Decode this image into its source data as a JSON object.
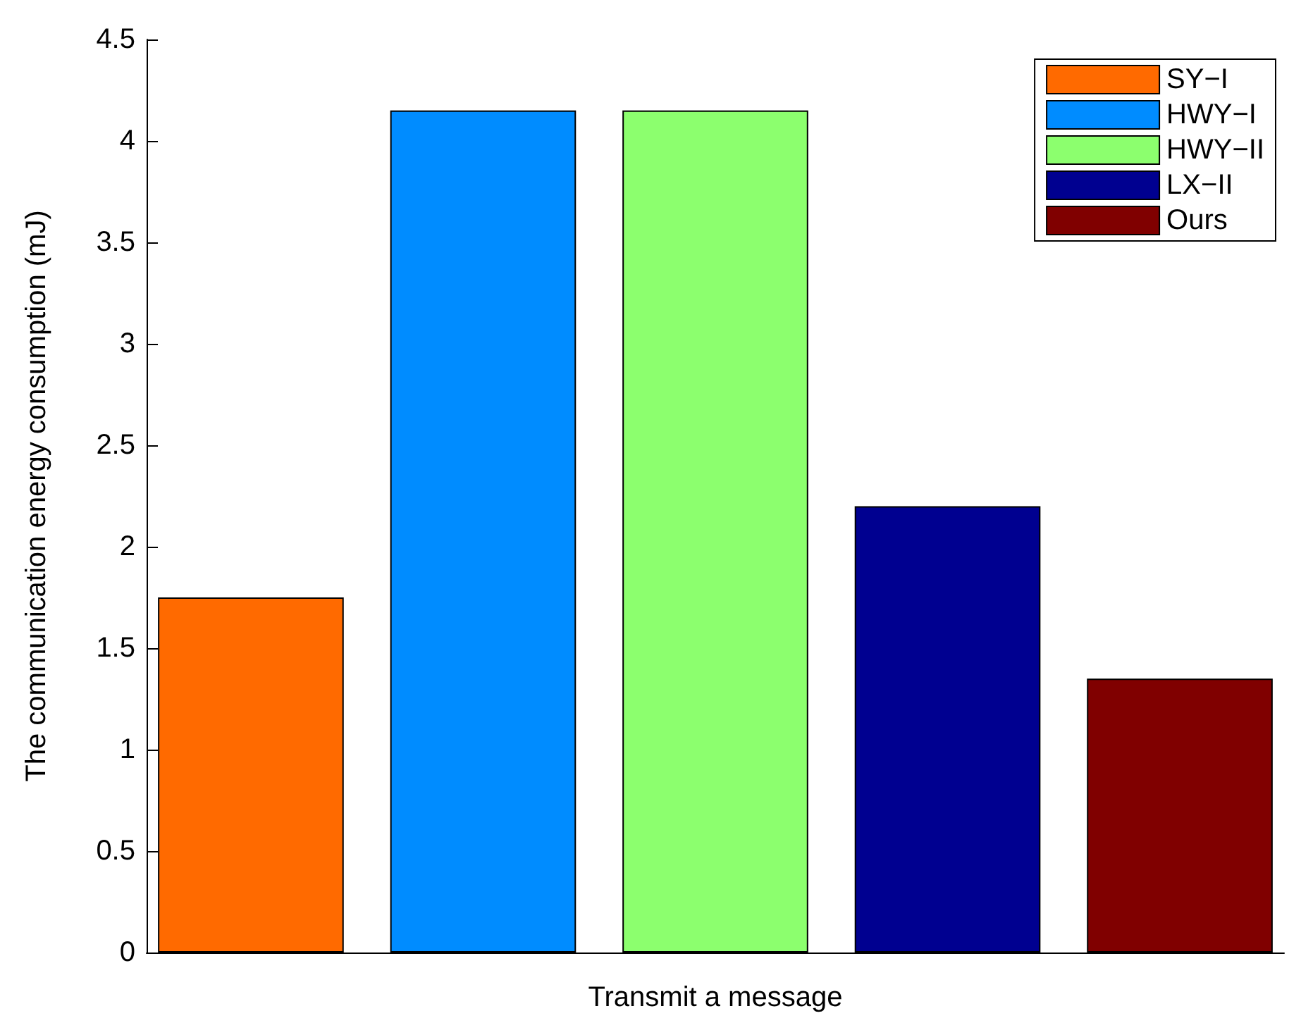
{
  "chart_data": {
    "type": "bar",
    "xlabel": "Transmit a message",
    "ylabel": "The communication energy consumption (mJ)",
    "categories": [
      null
    ],
    "series": [
      {
        "name": "SY−I",
        "color": "#ff6a00",
        "values": [
          1.75
        ]
      },
      {
        "name": "HWY−I",
        "color": "#008cff",
        "values": [
          4.15
        ]
      },
      {
        "name": "HWY−II",
        "color": "#8cff6e",
        "values": [
          4.15
        ]
      },
      {
        "name": "LX−II",
        "color": "#000090",
        "values": [
          2.2
        ]
      },
      {
        "name": "Ours",
        "color": "#800000",
        "values": [
          1.35
        ]
      }
    ],
    "ylim": [
      0,
      4.5
    ],
    "yticks": [
      0,
      0.5,
      1,
      1.5,
      2,
      2.5,
      3,
      3.5,
      4,
      4.5
    ],
    "grid": false,
    "legend": "top right"
  }
}
